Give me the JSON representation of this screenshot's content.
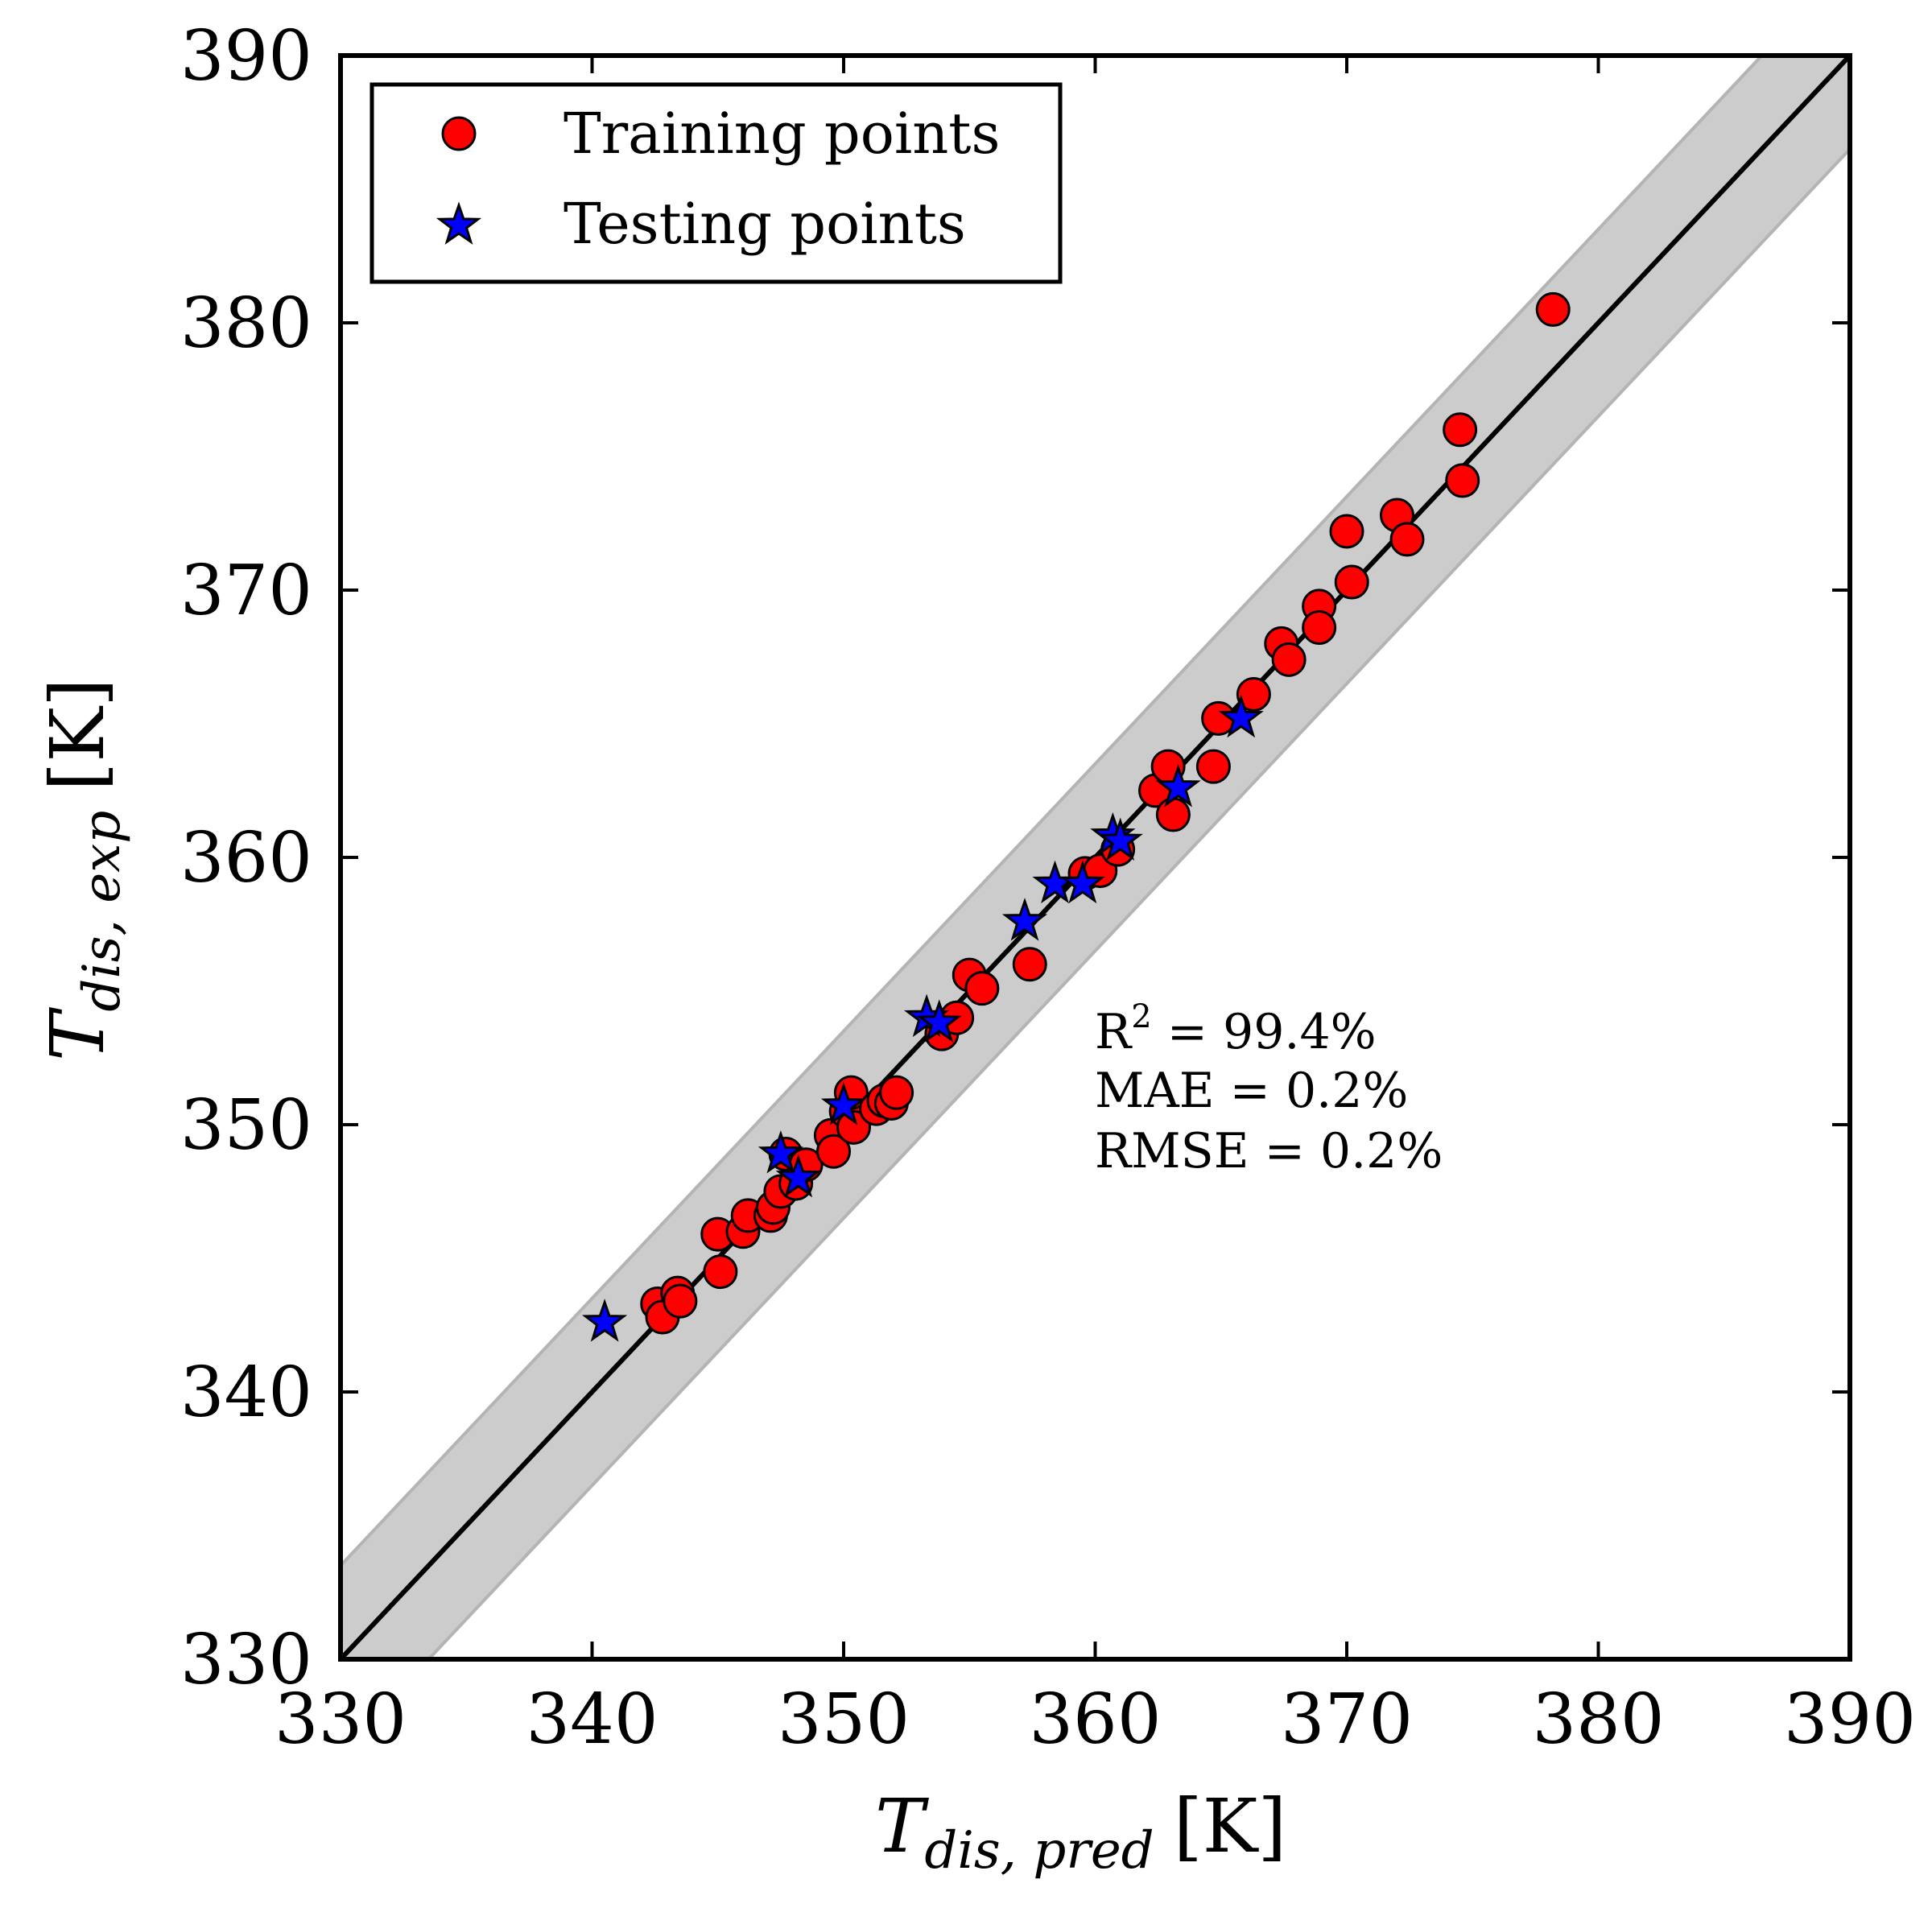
{
  "chart_data": {
    "type": "scatter",
    "xlim": [
      330,
      390
    ],
    "ylim": [
      330,
      390
    ],
    "xticks": [
      330,
      340,
      350,
      360,
      370,
      380,
      390
    ],
    "yticks": [
      330,
      340,
      350,
      360,
      370,
      380,
      390
    ],
    "xlabel": {
      "main": "T",
      "sub": "dis, pred",
      "unit": "[K]"
    },
    "ylabel": {
      "main": "T",
      "sub": "dis, exp",
      "unit": "[K]"
    },
    "grid": false,
    "legend_position": "top-left",
    "band_halfwidth": 3.5,
    "colors": {
      "training": "#ff0000",
      "testing": "#0000ff",
      "band": "#cccccc",
      "band_edge": "#b4b4b4",
      "diagonal": "#000000"
    },
    "legend": [
      {
        "label": "Training points",
        "marker": "circle",
        "color": "#ff0000"
      },
      {
        "label": "Testing points",
        "marker": "star",
        "color": "#0000ff"
      }
    ],
    "annotation": {
      "r2_label": "R",
      "r2_sup": "2",
      "r2_value": " = 99.4%",
      "mae": "MAE = 0.2%",
      "rmse": "RMSE = 0.2%"
    },
    "series": [
      {
        "name": "Training points",
        "marker": "circle",
        "points": [
          [
            342.6,
            343.3
          ],
          [
            342.8,
            342.8
          ],
          [
            343.4,
            343.7
          ],
          [
            343.5,
            343.4
          ],
          [
            345.0,
            345.9
          ],
          [
            345.1,
            344.5
          ],
          [
            346.0,
            346.0
          ],
          [
            346.2,
            346.6
          ],
          [
            347.1,
            346.6
          ],
          [
            347.2,
            346.9
          ],
          [
            347.5,
            347.5
          ],
          [
            347.7,
            348.9
          ],
          [
            348.1,
            347.8
          ],
          [
            348.5,
            348.5
          ],
          [
            349.5,
            349.6
          ],
          [
            349.6,
            349.0
          ],
          [
            350.1,
            350.5
          ],
          [
            350.3,
            351.2
          ],
          [
            350.4,
            349.9
          ],
          [
            351.3,
            350.6
          ],
          [
            351.6,
            350.9
          ],
          [
            351.9,
            350.8
          ],
          [
            352.1,
            351.2
          ],
          [
            353.9,
            353.4
          ],
          [
            354.5,
            354.0
          ],
          [
            355.0,
            355.6
          ],
          [
            355.5,
            355.1
          ],
          [
            357.4,
            356.0
          ],
          [
            359.6,
            359.4
          ],
          [
            360.2,
            359.5
          ],
          [
            360.9,
            360.3
          ],
          [
            362.4,
            362.5
          ],
          [
            362.9,
            363.4
          ],
          [
            363.1,
            361.6
          ],
          [
            364.7,
            363.4
          ],
          [
            364.9,
            365.2
          ],
          [
            366.3,
            366.1
          ],
          [
            367.4,
            368.0
          ],
          [
            367.7,
            367.4
          ],
          [
            368.9,
            369.4
          ],
          [
            368.9,
            368.6
          ],
          [
            370.0,
            372.2
          ],
          [
            370.2,
            370.3
          ],
          [
            372.0,
            372.8
          ],
          [
            372.4,
            371.9
          ],
          [
            374.5,
            376.0
          ],
          [
            374.6,
            374.1
          ],
          [
            378.2,
            380.5
          ]
        ]
      },
      {
        "name": "Testing points",
        "marker": "star",
        "points": [
          [
            340.5,
            342.6
          ],
          [
            347.5,
            348.9
          ],
          [
            348.2,
            348.0
          ],
          [
            350.0,
            350.7
          ],
          [
            353.3,
            354.0
          ],
          [
            353.8,
            353.8
          ],
          [
            357.2,
            357.6
          ],
          [
            358.4,
            359.0
          ],
          [
            359.5,
            359.0
          ],
          [
            360.7,
            360.8
          ],
          [
            361.0,
            360.6
          ],
          [
            363.3,
            362.6
          ],
          [
            365.8,
            365.2
          ]
        ]
      }
    ]
  }
}
